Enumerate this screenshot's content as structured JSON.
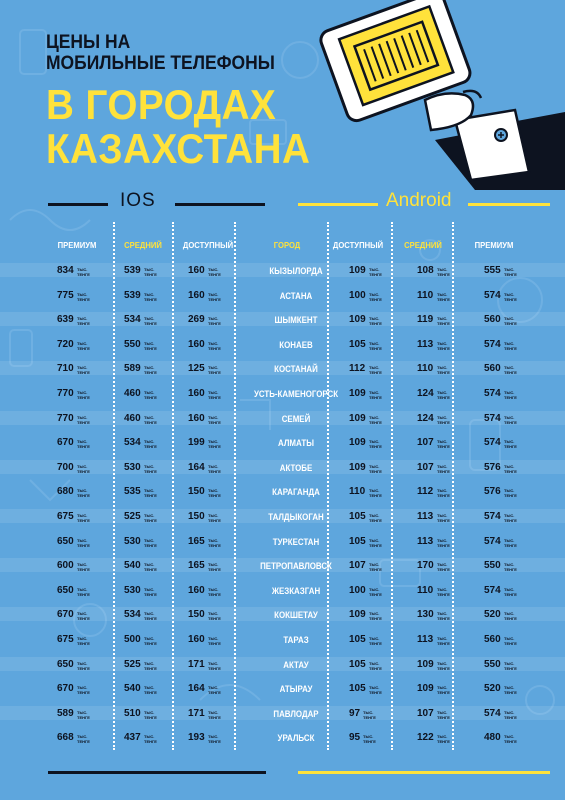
{
  "header": {
    "line1": "ЦЕНЫ НА",
    "line2": "МОБИЛЬНЫЕ ТЕЛЕФОНЫ",
    "big1": "В ГОРОДАХ",
    "big2": "КАЗАХСТАНА"
  },
  "sections": {
    "ios": "IOS",
    "android": "Android"
  },
  "unit_label": "ТЫС. ТЕНГЕ",
  "columns": [
    "ПРЕМИУМ",
    "СРЕДНИЙ",
    "ДОСТУПНЫЙ",
    "ГОРОД",
    "ДОСТУПНЫЙ",
    "СРЕДНИЙ",
    "ПРЕМИУМ"
  ],
  "colors": {
    "background": "#5ea6dd",
    "accent": "#ffe23b",
    "dark": "#0d1320"
  },
  "rows": [
    {
      "ios_premium": "834",
      "ios_mid": "539",
      "ios_budget": "160",
      "city": "КЫЗЫЛОРДА",
      "and_budget": "109",
      "and_mid": "108",
      "and_premium": "555"
    },
    {
      "ios_premium": "775",
      "ios_mid": "539",
      "ios_budget": "160",
      "city": "АСТАНА",
      "and_budget": "100",
      "and_mid": "110",
      "and_premium": "574"
    },
    {
      "ios_premium": "639",
      "ios_mid": "534",
      "ios_budget": "269",
      "city": "ШЫМКЕНТ",
      "and_budget": "109",
      "and_mid": "119",
      "and_premium": "560"
    },
    {
      "ios_premium": "720",
      "ios_mid": "550",
      "ios_budget": "160",
      "city": "КОНАЕВ",
      "and_budget": "105",
      "and_mid": "113",
      "and_premium": "574"
    },
    {
      "ios_premium": "710",
      "ios_mid": "589",
      "ios_budget": "125",
      "city": "КОСТАНАЙ",
      "and_budget": "112",
      "and_mid": "110",
      "and_premium": "560"
    },
    {
      "ios_premium": "770",
      "ios_mid": "460",
      "ios_budget": "160",
      "city": "УСТЬ-КАМЕНОГОРСК",
      "and_budget": "109",
      "and_mid": "124",
      "and_premium": "574"
    },
    {
      "ios_premium": "770",
      "ios_mid": "460",
      "ios_budget": "160",
      "city": "СЕМЕЙ",
      "and_budget": "109",
      "and_mid": "124",
      "and_premium": "574"
    },
    {
      "ios_premium": "670",
      "ios_mid": "534",
      "ios_budget": "199",
      "city": "АЛМАТЫ",
      "and_budget": "109",
      "and_mid": "107",
      "and_premium": "574"
    },
    {
      "ios_premium": "700",
      "ios_mid": "530",
      "ios_budget": "164",
      "city": "АКТОБЕ",
      "and_budget": "109",
      "and_mid": "107",
      "and_premium": "576"
    },
    {
      "ios_premium": "680",
      "ios_mid": "535",
      "ios_budget": "150",
      "city": "КАРАГАНДА",
      "and_budget": "110",
      "and_mid": "112",
      "and_premium": "576"
    },
    {
      "ios_premium": "675",
      "ios_mid": "525",
      "ios_budget": "150",
      "city": "ТАЛДЫКОГАН",
      "and_budget": "105",
      "and_mid": "113",
      "and_premium": "574"
    },
    {
      "ios_premium": "650",
      "ios_mid": "530",
      "ios_budget": "165",
      "city": "ТУРКЕСТАН",
      "and_budget": "105",
      "and_mid": "113",
      "and_premium": "574"
    },
    {
      "ios_premium": "600",
      "ios_mid": "540",
      "ios_budget": "165",
      "city": "ПЕТРОПАВЛОВСК",
      "and_budget": "107",
      "and_mid": "170",
      "and_premium": "550"
    },
    {
      "ios_premium": "650",
      "ios_mid": "530",
      "ios_budget": "160",
      "city": "ЖЕЗКАЗГАН",
      "and_budget": "100",
      "and_mid": "110",
      "and_premium": "574"
    },
    {
      "ios_premium": "670",
      "ios_mid": "534",
      "ios_budget": "150",
      "city": "КОКШЕТАУ",
      "and_budget": "109",
      "and_mid": "130",
      "and_premium": "520"
    },
    {
      "ios_premium": "675",
      "ios_mid": "500",
      "ios_budget": "160",
      "city": "ТАРАЗ",
      "and_budget": "105",
      "and_mid": "113",
      "and_premium": "560"
    },
    {
      "ios_premium": "650",
      "ios_mid": "525",
      "ios_budget": "171",
      "city": "АКТАУ",
      "and_budget": "105",
      "and_mid": "109",
      "and_premium": "550"
    },
    {
      "ios_premium": "670",
      "ios_mid": "540",
      "ios_budget": "164",
      "city": "АТЫРАУ",
      "and_budget": "105",
      "and_mid": "109",
      "and_premium": "520"
    },
    {
      "ios_premium": "589",
      "ios_mid": "510",
      "ios_budget": "171",
      "city": "ПАВЛОДАР",
      "and_budget": "97",
      "and_mid": "107",
      "and_premium": "574"
    },
    {
      "ios_premium": "668",
      "ios_mid": "437",
      "ios_budget": "193",
      "city": "УРАЛЬСК",
      "and_budget": "95",
      "and_mid": "122",
      "and_premium": "480"
    }
  ]
}
